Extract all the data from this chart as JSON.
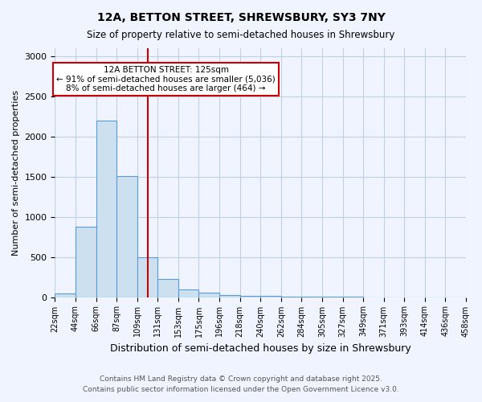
{
  "title1": "12A, BETTON STREET, SHREWSBURY, SY3 7NY",
  "title2": "Size of property relative to semi-detached houses in Shrewsbury",
  "xlabel": "Distribution of semi-detached houses by size in Shrewsbury",
  "ylabel": "Number of semi-detached properties",
  "bin_labels": [
    "22sqm",
    "44sqm",
    "66sqm",
    "87sqm",
    "109sqm",
    "131sqm",
    "153sqm",
    "175sqm",
    "196sqm",
    "218sqm",
    "240sqm",
    "262sqm",
    "284sqm",
    "305sqm",
    "327sqm",
    "349sqm",
    "371sqm",
    "393sqm",
    "414sqm",
    "436sqm",
    "458sqm"
  ],
  "bar_values": [
    50,
    880,
    2200,
    1510,
    500,
    230,
    100,
    60,
    30,
    20,
    20,
    5,
    2,
    1,
    1,
    0,
    0,
    0,
    0,
    0
  ],
  "bar_color": "#cce0f0",
  "bar_edgecolor": "#5b9bd5",
  "annotation_text": "12A BETTON STREET: 125sqm\n← 91% of semi-detached houses are smaller (5,036)\n8% of semi-detached houses are larger (464) →",
  "annotation_box_color": "#ffffff",
  "annotation_box_edgecolor": "#cc0000",
  "vline_color": "#cc0000",
  "vline_x_index": 4.5,
  "footer1": "Contains HM Land Registry data © Crown copyright and database right 2025.",
  "footer2": "Contains public sector information licensed under the Open Government Licence v3.0.",
  "ylim": [
    0,
    3100
  ],
  "yticks": [
    0,
    500,
    1000,
    1500,
    2000,
    2500,
    3000
  ],
  "bg_color": "#f0f4ff",
  "grid_color": "#c0d0e0"
}
